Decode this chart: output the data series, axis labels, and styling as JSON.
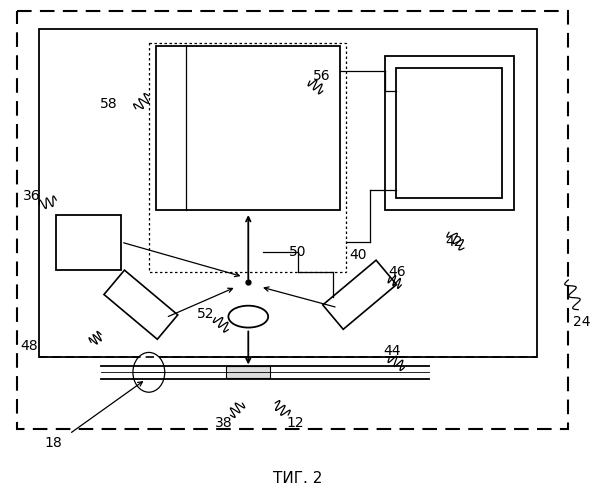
{
  "bg_color": "#ffffff",
  "title": "ΤИГ. 2",
  "lw": 1.3,
  "lw_thin": 0.9,
  "lw_dashed": 1.4
}
